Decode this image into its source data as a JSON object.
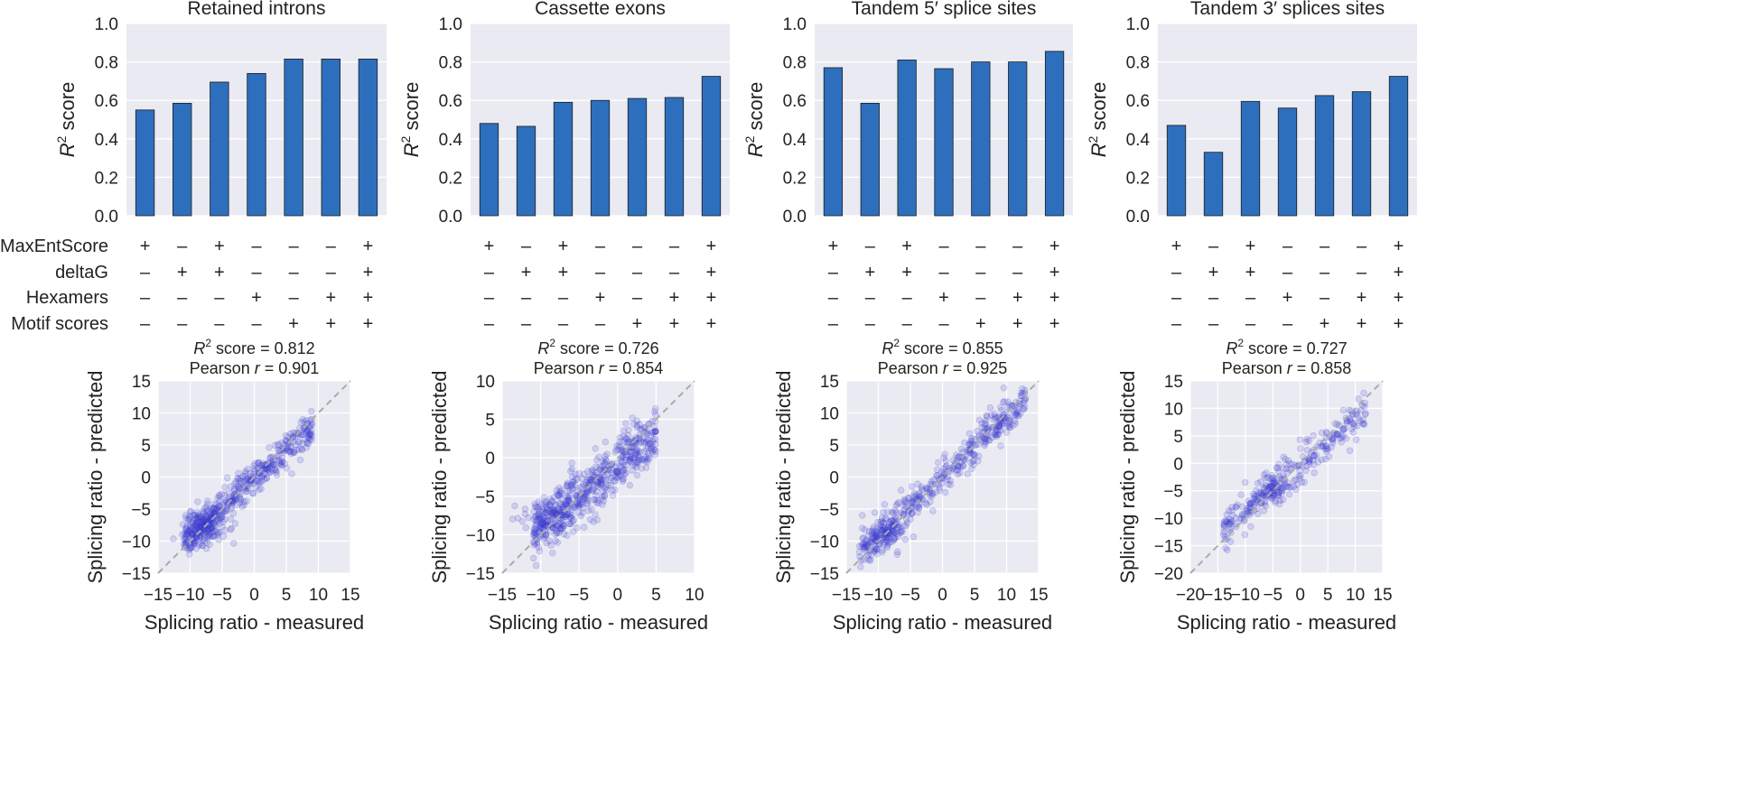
{
  "figure_title": "",
  "chart_data": [
    {
      "type": "bar",
      "title": "Retained introns",
      "ylabel": "R² score",
      "ylim": [
        0,
        1.0
      ],
      "yticks": [
        "0.0",
        "0.2",
        "0.4",
        "0.6",
        "0.8",
        "1.0"
      ],
      "values": [
        0.55,
        0.585,
        0.695,
        0.74,
        0.815,
        0.815,
        0.815
      ]
    },
    {
      "type": "bar",
      "title": "Cassette exons",
      "ylabel": "R² score",
      "ylim": [
        0,
        1.0
      ],
      "yticks": [
        "0.0",
        "0.2",
        "0.4",
        "0.6",
        "0.8",
        "1.0"
      ],
      "values": [
        0.48,
        0.465,
        0.59,
        0.6,
        0.61,
        0.615,
        0.725
      ]
    },
    {
      "type": "bar",
      "title": "Tandem 5′ splice sites",
      "ylabel": "R² score",
      "ylim": [
        0,
        1.0
      ],
      "yticks": [
        "0.0",
        "0.2",
        "0.4",
        "0.6",
        "0.8",
        "1.0"
      ],
      "values": [
        0.77,
        0.585,
        0.81,
        0.765,
        0.8,
        0.8,
        0.855
      ]
    },
    {
      "type": "bar",
      "title": "Tandem 3′ splices sites",
      "ylabel": "R² score",
      "ylim": [
        0,
        1.0
      ],
      "yticks": [
        "0.0",
        "0.2",
        "0.4",
        "0.6",
        "0.8",
        "1.0"
      ],
      "values": [
        0.47,
        0.33,
        0.595,
        0.56,
        0.625,
        0.645,
        0.725
      ]
    },
    {
      "type": "scatter",
      "stat_r2": "R² score = 0.812",
      "stat_pearson": "Pearson r = 0.901",
      "xlabel": "Splicing ratio - measured",
      "ylabel": "Splicing ratio - predicted",
      "xlim": [
        -15,
        15
      ],
      "ylim": [
        -15,
        15
      ],
      "xticks": [
        "−15",
        "−10",
        "−5",
        "0",
        "5",
        "10",
        "15"
      ],
      "yticks": [
        "−15",
        "−10",
        "−5",
        "0",
        "5",
        "10",
        "15"
      ],
      "cloud": {
        "n": 420,
        "x_range": [
          -11,
          9
        ],
        "slope": 0.9,
        "intercept": -0.2,
        "noise": 1.3,
        "dense_center": [
          -8,
          -8
        ],
        "dense_n": 140
      }
    },
    {
      "type": "scatter",
      "stat_r2": "R² score = 0.726",
      "stat_pearson": "Pearson r = 0.854",
      "xlabel": "Splicing ratio - measured",
      "ylabel": "Splicing ratio - predicted",
      "xlim": [
        -15,
        10
      ],
      "ylim": [
        -15,
        10
      ],
      "xticks": [
        "−15",
        "−10",
        "−5",
        "0",
        "5",
        "10"
      ],
      "yticks": [
        "−15",
        "−10",
        "−5",
        "0",
        "5",
        "10"
      ],
      "cloud": {
        "n": 520,
        "x_range": [
          -11,
          5
        ],
        "slope": 0.8,
        "intercept": -0.8,
        "noise": 1.8,
        "dense_center": [
          -9,
          -8
        ],
        "dense_n": 80
      }
    },
    {
      "type": "scatter",
      "stat_r2": "R² score = 0.855",
      "stat_pearson": "Pearson r = 0.925",
      "xlabel": "Splicing ratio - measured",
      "ylabel": "Splicing ratio - predicted",
      "xlim": [
        -15,
        15
      ],
      "ylim": [
        -15,
        15
      ],
      "xticks": [
        "−15",
        "−10",
        "−5",
        "0",
        "5",
        "10",
        "15"
      ],
      "yticks": [
        "−15",
        "−10",
        "−5",
        "0",
        "5",
        "10",
        "15"
      ],
      "cloud": {
        "n": 420,
        "x_range": [
          -13,
          13
        ],
        "slope": 0.95,
        "intercept": 0,
        "noise": 1.4,
        "dense_center": [
          -9,
          -9
        ],
        "dense_n": 70
      }
    },
    {
      "type": "scatter",
      "stat_r2": "R² score = 0.727",
      "stat_pearson": "Pearson r = 0.858",
      "xlabel": "Splicing ratio - measured",
      "ylabel": "Splicing ratio - predicted",
      "xlim": [
        -20,
        15
      ],
      "ylim": [
        -20,
        15
      ],
      "xticks": [
        "−20",
        "−15",
        "−10",
        "−5",
        "0",
        "5",
        "10",
        "15"
      ],
      "yticks": [
        "−20",
        "−15",
        "−10",
        "−5",
        "0",
        "5",
        "10",
        "15"
      ],
      "cloud": {
        "n": 260,
        "x_range": [
          -14,
          12
        ],
        "slope": 0.85,
        "intercept": -0.3,
        "noise": 1.8,
        "dense_center": [
          -5,
          -5
        ],
        "dense_n": 60
      }
    }
  ],
  "features": {
    "labels": [
      "MaxEntScore",
      "deltaG",
      "Hexamers",
      "Motif scores"
    ],
    "plus": "+",
    "minus": "–",
    "matrix": [
      [
        "+",
        "–",
        "+",
        "–",
        "–",
        "–",
        "+"
      ],
      [
        "–",
        "+",
        "+",
        "–",
        "–",
        "–",
        "+"
      ],
      [
        "–",
        "–",
        "–",
        "+",
        "–",
        "+",
        "+"
      ],
      [
        "–",
        "–",
        "–",
        "–",
        "+",
        "+",
        "+"
      ]
    ]
  },
  "colors": {
    "bar": "#2d6fbd",
    "bar_edge": "#1c1c1c",
    "panel_bg": "#eaeaf2",
    "grid": "#ffffff",
    "point": "#3a3ad0",
    "diagonal": "#aaaaaa",
    "text": "#222222"
  }
}
